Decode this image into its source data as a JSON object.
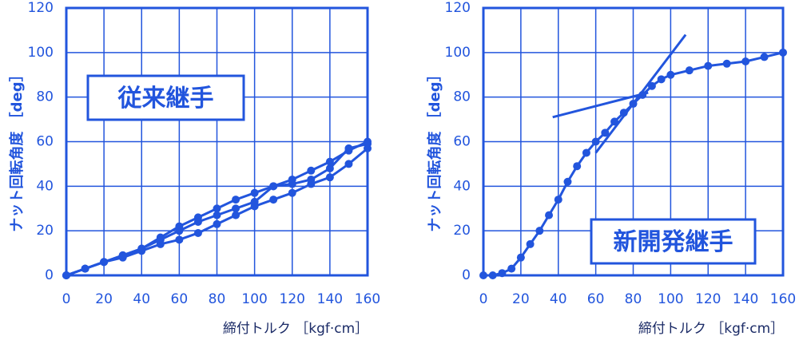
{
  "chart_data": [
    {
      "type": "line",
      "annotation": "従来継手",
      "xlabel": "締付トルク ［kgf·cm］",
      "ylabel": "ナット回転角度 ［deg］",
      "xlim": [
        0,
        160
      ],
      "xticks": [
        0,
        20,
        40,
        60,
        80,
        100,
        120,
        140,
        160
      ],
      "ylim": [
        0,
        120
      ],
      "yticks": [
        0,
        20,
        40,
        60,
        80,
        100,
        120
      ],
      "grid": true,
      "markers": true,
      "series": [
        {
          "color": "#2255dd",
          "x": [
            0,
            10,
            20,
            30,
            40,
            50,
            60,
            70,
            80,
            90,
            100,
            110,
            120,
            130,
            140,
            150,
            160
          ],
          "values": [
            0,
            3,
            6,
            9,
            12,
            17,
            22,
            26,
            30,
            34,
            37,
            40,
            43,
            47,
            51,
            56,
            60
          ]
        },
        {
          "color": "#2255dd",
          "x": [
            0,
            10,
            20,
            30,
            40,
            50,
            60,
            70,
            80,
            90,
            100,
            110,
            120,
            130,
            140,
            150,
            160
          ],
          "values": [
            0,
            3,
            6,
            9,
            12,
            16,
            20,
            24,
            27,
            30,
            33,
            40,
            41,
            43,
            48,
            57,
            59
          ]
        },
        {
          "color": "#2255dd",
          "x": [
            0,
            10,
            20,
            30,
            40,
            50,
            60,
            70,
            80,
            90,
            100,
            110,
            120,
            130,
            140,
            150,
            160
          ],
          "values": [
            0,
            3,
            6,
            8,
            11,
            14,
            16,
            19,
            23,
            27,
            31,
            34,
            37,
            41,
            44,
            50,
            57
          ]
        }
      ]
    },
    {
      "type": "line",
      "annotation": "新開発継手",
      "xlabel": "締付トルク ［kgf·cm］",
      "ylabel": "ナット回転角度 ［deg］",
      "xlim": [
        0,
        160
      ],
      "xticks": [
        0,
        20,
        40,
        60,
        80,
        100,
        120,
        140,
        160
      ],
      "ylim": [
        0,
        120
      ],
      "yticks": [
        0,
        20,
        40,
        60,
        80,
        100,
        120
      ],
      "grid": true,
      "markers": true,
      "series": [
        {
          "color": "#2255dd",
          "marker": true,
          "x": [
            0,
            5,
            10,
            15,
            20,
            25,
            30,
            35,
            40,
            45,
            50,
            55,
            60,
            65,
            70,
            75,
            80,
            85,
            90,
            95,
            100,
            110,
            120,
            130,
            140,
            150,
            160
          ],
          "values": [
            0,
            0,
            1,
            3,
            8,
            14,
            20,
            27,
            34,
            42,
            49,
            55,
            60,
            64,
            69,
            73,
            77,
            81,
            85,
            88,
            90,
            92,
            94,
            95,
            96,
            98,
            100
          ]
        },
        {
          "color": "#2255dd",
          "marker": false,
          "x": [
            37,
            88
          ],
          "values": [
            71,
            82
          ]
        },
        {
          "color": "#2255dd",
          "marker": false,
          "x": [
            60,
            108
          ],
          "values": [
            55,
            108
          ]
        }
      ]
    }
  ]
}
